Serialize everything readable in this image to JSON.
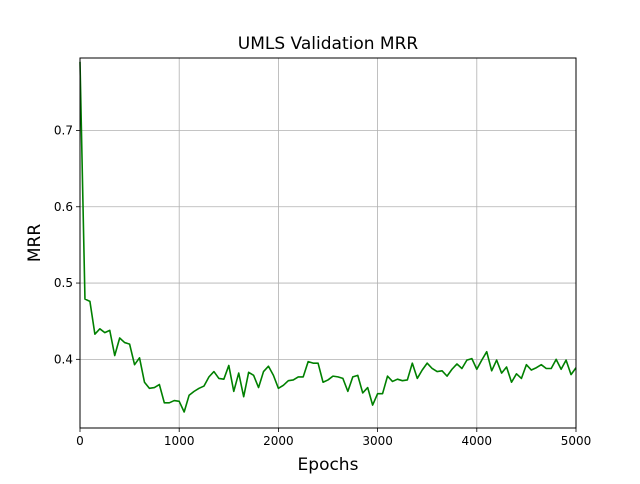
{
  "chart_data": {
    "type": "line",
    "title": "UMLS Validation MRR",
    "xlabel": "Epochs",
    "ylabel": "MRR",
    "xlim": [
      0,
      5000
    ],
    "ylim": [
      0.31,
      0.795
    ],
    "x_ticks": [
      0,
      1000,
      2000,
      3000,
      4000,
      5000
    ],
    "x_tick_labels": [
      "0",
      "1000",
      "2000",
      "3000",
      "4000",
      "5000"
    ],
    "y_ticks": [
      0.4,
      0.5,
      0.6,
      0.7
    ],
    "y_tick_labels": [
      "0.4",
      "0.5",
      "0.6",
      "0.7"
    ],
    "grid": true,
    "series": [
      {
        "color": "#008000",
        "x": [
          0,
          50,
          100,
          150,
          200,
          250,
          300,
          350,
          400,
          450,
          500,
          550,
          600,
          650,
          700,
          750,
          800,
          850,
          900,
          950,
          1000,
          1050,
          1100,
          1150,
          1200,
          1250,
          1300,
          1350,
          1400,
          1450,
          1500,
          1550,
          1600,
          1650,
          1700,
          1750,
          1800,
          1850,
          1900,
          1950,
          2000,
          2050,
          2100,
          2150,
          2200,
          2250,
          2300,
          2350,
          2400,
          2450,
          2500,
          2550,
          2600,
          2650,
          2700,
          2750,
          2800,
          2850,
          2900,
          2950,
          3000,
          3050,
          3100,
          3150,
          3200,
          3250,
          3300,
          3350,
          3400,
          3450,
          3500,
          3550,
          3600,
          3650,
          3700,
          3750,
          3800,
          3850,
          3900,
          3950,
          4000,
          4050,
          4100,
          4150,
          4200,
          4250,
          4300,
          4350,
          4400,
          4450,
          4500,
          4550,
          4600,
          4650,
          4700,
          4750,
          4800,
          4850,
          4900,
          4950,
          5000
        ],
        "y": [
          0.79,
          0.479,
          0.476,
          0.433,
          0.44,
          0.435,
          0.438,
          0.405,
          0.428,
          0.422,
          0.42,
          0.393,
          0.402,
          0.37,
          0.362,
          0.363,
          0.367,
          0.343,
          0.343,
          0.346,
          0.345,
          0.331,
          0.353,
          0.358,
          0.362,
          0.365,
          0.377,
          0.384,
          0.375,
          0.374,
          0.392,
          0.358,
          0.382,
          0.351,
          0.383,
          0.379,
          0.363,
          0.384,
          0.391,
          0.379,
          0.362,
          0.366,
          0.372,
          0.373,
          0.377,
          0.377,
          0.397,
          0.395,
          0.395,
          0.37,
          0.373,
          0.378,
          0.377,
          0.375,
          0.358,
          0.377,
          0.379,
          0.356,
          0.363,
          0.34,
          0.355,
          0.355,
          0.378,
          0.371,
          0.374,
          0.372,
          0.373,
          0.395,
          0.375,
          0.386,
          0.395,
          0.388,
          0.384,
          0.385,
          0.378,
          0.387,
          0.394,
          0.388,
          0.399,
          0.401,
          0.387,
          0.399,
          0.41,
          0.385,
          0.399,
          0.382,
          0.39,
          0.37,
          0.381,
          0.375,
          0.393,
          0.386,
          0.389,
          0.393,
          0.388,
          0.388,
          0.4,
          0.387,
          0.399,
          0.38,
          0.389
        ]
      }
    ]
  }
}
